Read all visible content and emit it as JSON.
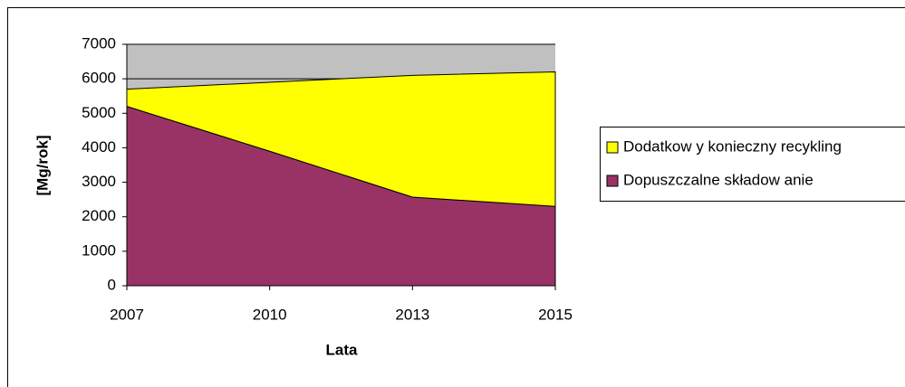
{
  "chart_data": {
    "type": "stacked-area",
    "x_label": "Lata",
    "y_label": "[Mg/rok]",
    "categories": [
      "2007",
      "2010",
      "2013",
      "2015"
    ],
    "series": [
      {
        "name": "Dopuszczalne składow anie",
        "color": "#993366",
        "values": [
          5200,
          3900,
          2570,
          2300
        ]
      },
      {
        "name": "Dodatkow y konieczny recykling",
        "color": "#ffff00",
        "values": [
          500,
          2000,
          3530,
          3900
        ]
      }
    ],
    "ylim": [
      0,
      7000
    ],
    "yticks": [
      0,
      1000,
      2000,
      3000,
      4000,
      5000,
      6000,
      7000
    ],
    "grid": true,
    "legend": "right",
    "background": "#c0c0c0"
  }
}
